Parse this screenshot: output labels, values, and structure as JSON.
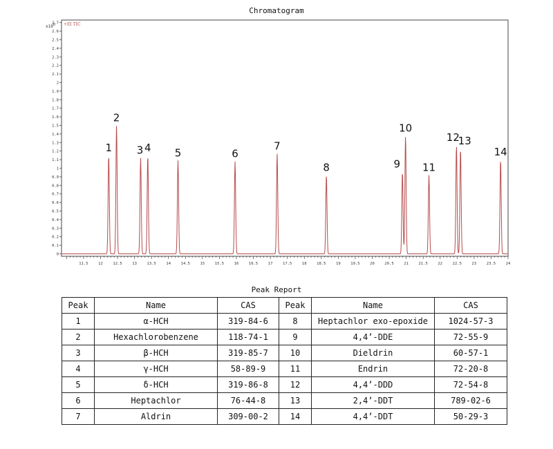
{
  "chart_data": {
    "type": "line",
    "title": "Chromatogram",
    "trace_label": "+EI TIC",
    "y_multiplier": "x10",
    "y_multiplier_exp": "6",
    "xlim": [
      10.85,
      24.0
    ],
    "ylim": [
      0,
      3.0
    ],
    "x_ticks": [
      11.5,
      12,
      12.5,
      13,
      13.5,
      14,
      14.5,
      15,
      15.5,
      16,
      16.5,
      17,
      17.5,
      18,
      18.5,
      19,
      19.5,
      20,
      20.5,
      21,
      21.5,
      22,
      22.5,
      23,
      23.5,
      24
    ],
    "x_tick_labels": [
      "11.5",
      "12",
      "12.5",
      "13",
      "13.5",
      "14",
      "14.5",
      "15",
      "15.5",
      "16",
      "16.5",
      "17",
      "17.5",
      "18",
      "18.5",
      "19",
      "19.5",
      "20",
      "20.5",
      "21",
      "21.5",
      "22",
      "22.5",
      "23",
      "23.5",
      "24"
    ],
    "y_ticks": [
      0,
      0.1,
      0.2,
      0.3,
      0.4,
      0.5,
      0.6,
      0.7,
      0.8,
      0.9,
      1,
      1.1,
      1.2,
      1.3,
      1.4,
      1.5,
      1.6,
      1.7,
      1.8,
      1.9,
      2,
      2.1,
      2.2,
      2.3,
      2.4,
      2.5,
      2.6,
      2.7
    ],
    "y_tick_labels": [
      "0",
      "0.1",
      "0.2",
      "0.3",
      "0.4",
      "0.5",
      "0.6",
      "0.7",
      "0.8",
      "0.9",
      "1",
      "1.1",
      "1.2",
      "1.3",
      "1.4",
      "1.5",
      "1.6",
      "1.7",
      "1.8",
      "1.9",
      "2",
      "2.1",
      "2.2",
      "2.3",
      "2.4",
      "2.5",
      "2.6",
      "2.7"
    ],
    "peaks": [
      {
        "label": "1",
        "rt": 12.24,
        "height": 1.15
      },
      {
        "label": "2",
        "rt": 12.47,
        "height": 1.5
      },
      {
        "label": "3",
        "rt": 13.18,
        "height": 1.12
      },
      {
        "label": "4",
        "rt": 13.39,
        "height": 1.15
      },
      {
        "label": "5",
        "rt": 14.28,
        "height": 1.09
      },
      {
        "label": "6",
        "rt": 15.96,
        "height": 1.08
      },
      {
        "label": "7",
        "rt": 17.2,
        "height": 1.17
      },
      {
        "label": "8",
        "rt": 18.65,
        "height": 0.92
      },
      {
        "label": "9",
        "rt": 20.89,
        "height": 0.96
      },
      {
        "label": "10",
        "rt": 20.98,
        "height": 1.38
      },
      {
        "label": "11",
        "rt": 21.67,
        "height": 0.92
      },
      {
        "label": "12",
        "rt": 22.48,
        "height": 1.27
      },
      {
        "label": "13",
        "rt": 22.6,
        "height": 1.23
      },
      {
        "label": "14",
        "rt": 23.78,
        "height": 1.1
      }
    ],
    "line_color": "#b54a4a"
  },
  "report": {
    "title": "Peak Report",
    "headers": [
      "Peak",
      "Name",
      "CAS",
      "Peak",
      "Name",
      "CAS"
    ],
    "rows": [
      [
        "1",
        "α-HCH",
        "319-84-6",
        "8",
        "Heptachlor exo-epoxide",
        "1024-57-3"
      ],
      [
        "2",
        "Hexachlorobenzene",
        "118-74-1",
        "9",
        "4,4’-DDE",
        "72-55-9"
      ],
      [
        "3",
        "β-HCH",
        "319-85-7",
        "10",
        "Dieldrin",
        "60-57-1"
      ],
      [
        "4",
        "γ-HCH",
        "58-89-9",
        "11",
        "Endrin",
        "72-20-8"
      ],
      [
        "5",
        "δ-HCH",
        "319-86-8",
        "12",
        "4,4’-DDD",
        "72-54-8"
      ],
      [
        "6",
        "Heptachlor",
        "76-44-8",
        "13",
        "2,4’-DDT",
        "789-02-6"
      ],
      [
        "7",
        "Aldrin",
        "309-00-2",
        "14",
        "4,4’-DDT",
        "50-29-3"
      ]
    ]
  }
}
